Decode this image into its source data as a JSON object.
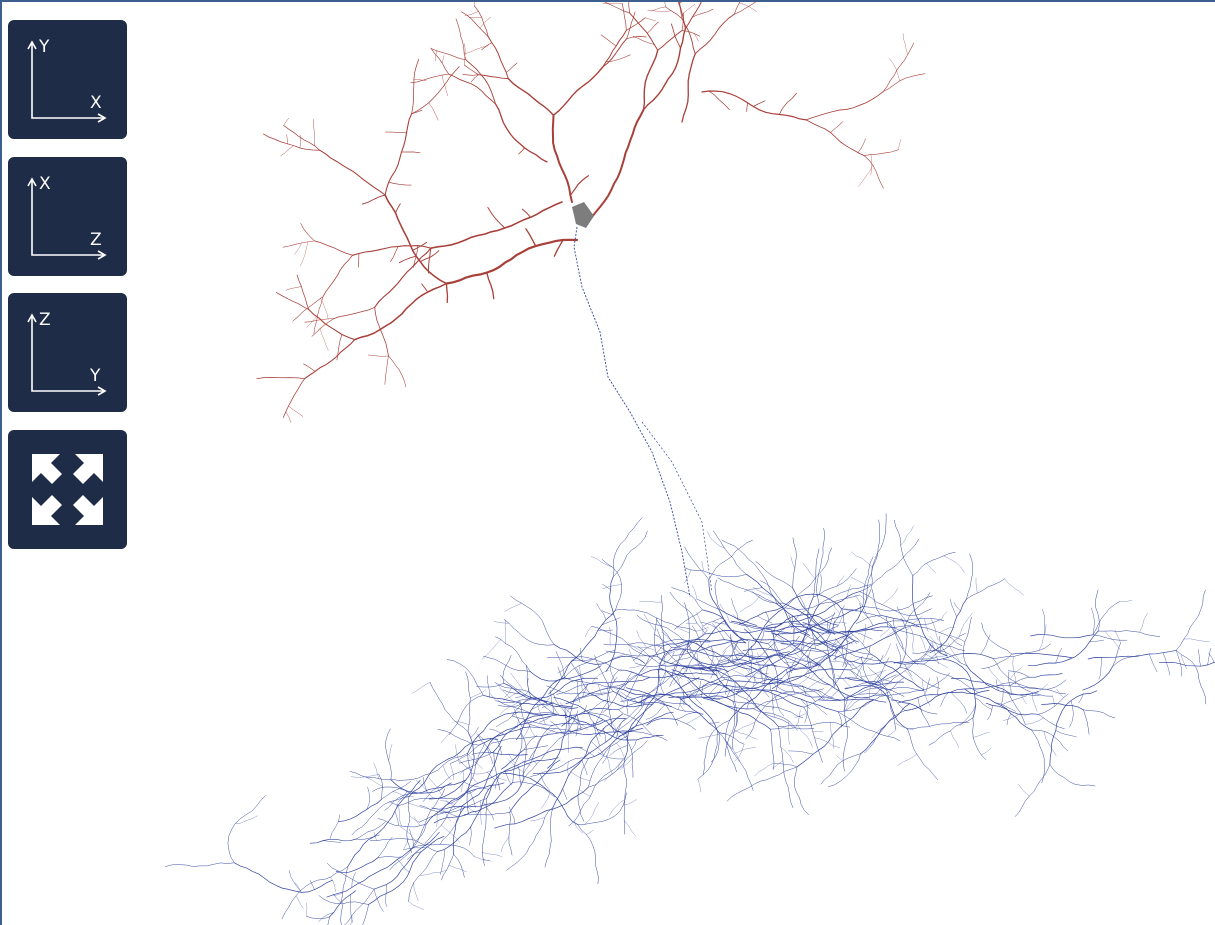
{
  "view_buttons": [
    {
      "vertical": "Y",
      "horizontal": "X"
    },
    {
      "vertical": "X",
      "horizontal": "Z"
    },
    {
      "vertical": "Z",
      "horizontal": "Y"
    }
  ]
}
